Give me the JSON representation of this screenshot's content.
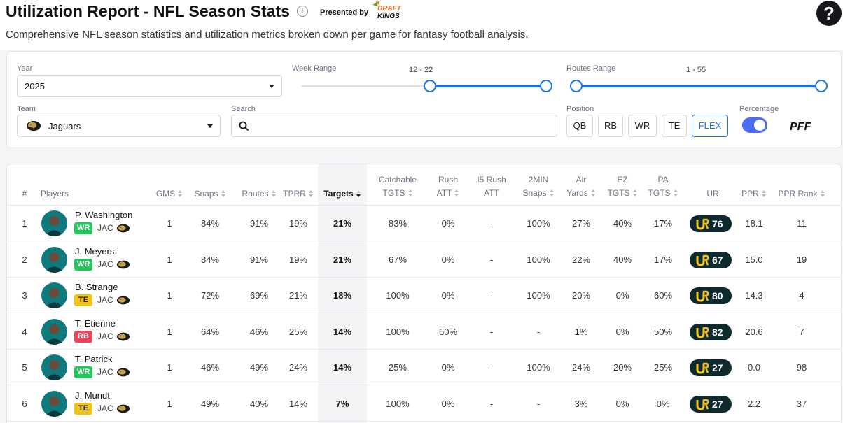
{
  "header": {
    "title": "Utilization Report - NFL Season Stats",
    "presented_by": "Presented by",
    "sponsor": "DRAFT KINGS",
    "help": "?",
    "info": "i",
    "subtitle": "Comprehensive NFL season statistics and utilization metrics broken down per game for fantasy football analysis."
  },
  "filters": {
    "year_label": "Year",
    "year_value": "2025",
    "week_label": "Week Range",
    "week_value": "12 - 22",
    "routes_label": "Routes Range",
    "routes_value": "1 - 55",
    "team_label": "Team",
    "team_value": "Jaguars",
    "search_label": "Search",
    "search_placeholder": "",
    "position_label": "Position",
    "positions": [
      "QB",
      "RB",
      "WR",
      "TE",
      "FLEX"
    ],
    "active_position": "FLEX",
    "percentage_label": "Percentage",
    "percentage_on": true,
    "brand": "PFF",
    "accent_color": "#1a73e8"
  },
  "table": {
    "columns": [
      [
        "#"
      ],
      [
        "Players"
      ],
      [
        "GMS"
      ],
      [
        "Snaps"
      ],
      [
        "Routes"
      ],
      [
        "TPRR"
      ],
      [
        "Targets"
      ],
      [
        "Catchable",
        "TGTS"
      ],
      [
        "Rush",
        "ATT"
      ],
      [
        "I5 Rush",
        "ATT"
      ],
      [
        "2MIN",
        "Snaps"
      ],
      [
        "Air",
        "Yards"
      ],
      [
        "EZ",
        "TGTS"
      ],
      [
        "PA",
        "TGTS"
      ],
      [
        "UR"
      ],
      [
        "PPR"
      ],
      [
        "PPR Rank"
      ]
    ],
    "sorted_column": "Targets",
    "rows": [
      {
        "rank": "1",
        "name": "P. Washington",
        "pos": "WR",
        "team": "JAC",
        "gms": "1",
        "snaps": "84%",
        "routes": "91%",
        "tprr": "19%",
        "targets": "21%",
        "catchable": "83%",
        "rush": "0%",
        "i5rush": "-",
        "twomin": "100%",
        "air": "27%",
        "ez": "40%",
        "pa": "17%",
        "ur": "76",
        "ppr": "18.1",
        "ppr_rank": "11"
      },
      {
        "rank": "2",
        "name": "J. Meyers",
        "pos": "WR",
        "team": "JAC",
        "gms": "1",
        "snaps": "84%",
        "routes": "91%",
        "tprr": "19%",
        "targets": "21%",
        "catchable": "67%",
        "rush": "0%",
        "i5rush": "-",
        "twomin": "100%",
        "air": "22%",
        "ez": "40%",
        "pa": "17%",
        "ur": "67",
        "ppr": "15.0",
        "ppr_rank": "19"
      },
      {
        "rank": "3",
        "name": "B. Strange",
        "pos": "TE",
        "team": "JAC",
        "gms": "1",
        "snaps": "72%",
        "routes": "69%",
        "tprr": "21%",
        "targets": "18%",
        "catchable": "100%",
        "rush": "0%",
        "i5rush": "-",
        "twomin": "100%",
        "air": "20%",
        "ez": "0%",
        "pa": "60%",
        "ur": "80",
        "ppr": "14.3",
        "ppr_rank": "4"
      },
      {
        "rank": "4",
        "name": "T. Etienne",
        "pos": "RB",
        "team": "JAC",
        "gms": "1",
        "snaps": "64%",
        "routes": "46%",
        "tprr": "25%",
        "targets": "14%",
        "catchable": "100%",
        "rush": "60%",
        "i5rush": "-",
        "twomin": "-",
        "air": "1%",
        "ez": "0%",
        "pa": "50%",
        "ur": "82",
        "ppr": "20.6",
        "ppr_rank": "7"
      },
      {
        "rank": "5",
        "name": "T. Patrick",
        "pos": "WR",
        "team": "JAC",
        "gms": "1",
        "snaps": "46%",
        "routes": "49%",
        "tprr": "24%",
        "targets": "14%",
        "catchable": "25%",
        "rush": "0%",
        "i5rush": "-",
        "twomin": "100%",
        "air": "24%",
        "ez": "20%",
        "pa": "25%",
        "ur": "27",
        "ppr": "0.0",
        "ppr_rank": "98"
      },
      {
        "rank": "6",
        "name": "J. Mundt",
        "pos": "TE",
        "team": "JAC",
        "gms": "1",
        "snaps": "49%",
        "routes": "40%",
        "tprr": "14%",
        "targets": "7%",
        "catchable": "100%",
        "rush": "0%",
        "i5rush": "-",
        "twomin": "-",
        "air": "3%",
        "ez": "0%",
        "pa": "0%",
        "ur": "27",
        "ppr": "2.2",
        "ppr_rank": "37"
      }
    ],
    "position_colors": {
      "WR": "#22c55e",
      "TE": "#f2c318",
      "RB": "#ef4457"
    },
    "ur_badge_color": "#0e2a2f",
    "ur_mark_color": "#f5c518"
  }
}
